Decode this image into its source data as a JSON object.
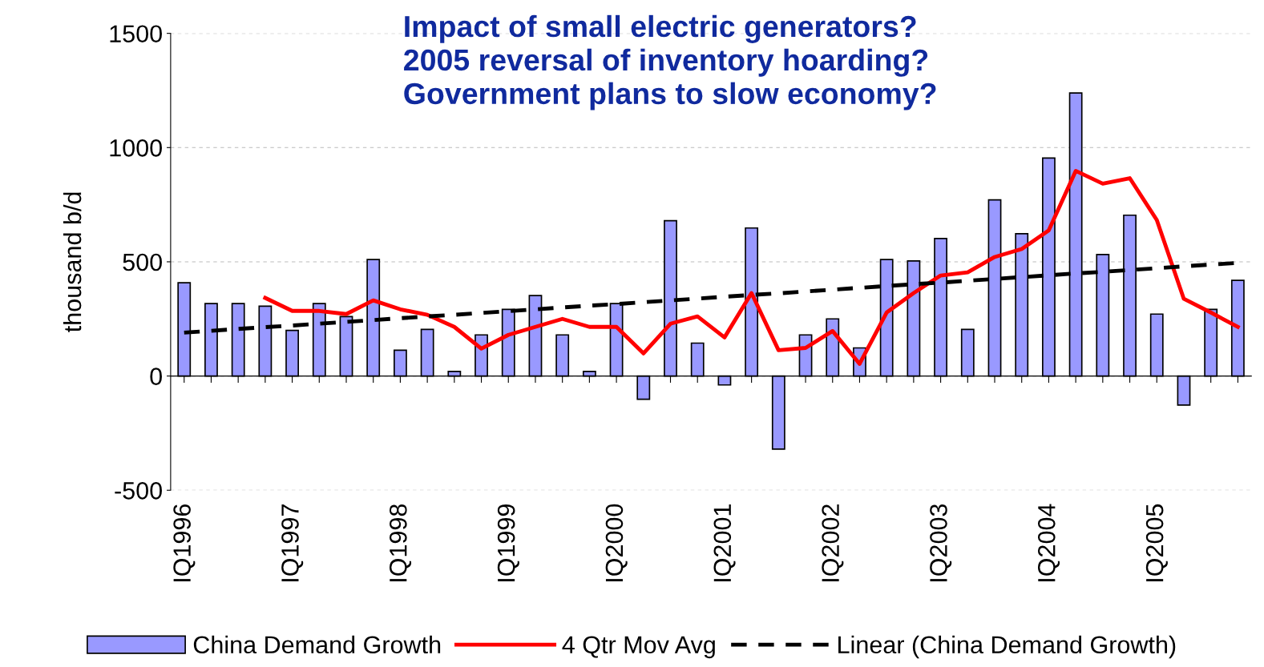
{
  "chart_data": {
    "type": "bar",
    "title": "Impact of small electric generators?\n2005 reversal of inventory hoarding?\nGovernment plans to slow economy?",
    "ylabel": "thousand b/d",
    "categories": [
      "IQ1996",
      null,
      null,
      null,
      "IQ1997",
      null,
      null,
      null,
      "IQ1998",
      null,
      null,
      null,
      "IQ1999",
      null,
      null,
      null,
      "IQ2000",
      null,
      null,
      null,
      "IQ2001",
      null,
      null,
      null,
      "IQ2002",
      null,
      null,
      null,
      "IQ2003",
      null,
      null,
      null,
      "IQ2004",
      null,
      null,
      null,
      "IQ2005",
      null,
      null,
      null
    ],
    "series": [
      {
        "name": "China Demand Growth",
        "color": "#9999ff",
        "values": [
          408,
          317,
          317,
          306,
          200,
          317,
          260,
          510,
          113,
          204,
          20,
          180,
          292,
          352,
          180,
          20,
          317,
          -102,
          680,
          144,
          -39,
          648,
          -320,
          180,
          250,
          123,
          510,
          504,
          602,
          204,
          771,
          623,
          954,
          1239,
          532,
          704,
          271,
          -127,
          292,
          419
        ]
      },
      {
        "name": "4 Qtr Mov Avg",
        "type": "line",
        "color": "#ff0000",
        "line_style": "solid",
        "values": [
          null,
          null,
          null,
          342,
          285,
          285,
          271,
          331,
          292,
          268,
          215,
          120,
          180,
          215,
          250,
          215,
          215,
          99,
          229,
          261,
          169,
          363,
          113,
          123,
          197,
          53,
          278,
          363,
          440,
          454,
          521,
          556,
          637,
          898,
          842,
          866,
          683,
          338,
          278,
          215
        ]
      },
      {
        "name": "Linear (China Demand Growth)",
        "type": "line",
        "color": "#000000",
        "line_style": "dashed",
        "values": [
          190,
          198,
          206,
          214,
          221,
          229,
          237,
          245,
          253,
          261,
          268,
          276,
          284,
          292,
          300,
          308,
          315,
          323,
          331,
          339,
          347,
          355,
          362,
          370,
          378,
          386,
          394,
          402,
          409,
          417,
          425,
          433,
          441,
          449,
          456,
          464,
          472,
          480,
          488,
          495
        ]
      }
    ],
    "ylim": [
      -500,
      1500
    ],
    "yticks": [
      -500,
      0,
      500,
      1000,
      1500
    ],
    "grid": "y",
    "legend": "bottom",
    "marker": "none"
  }
}
